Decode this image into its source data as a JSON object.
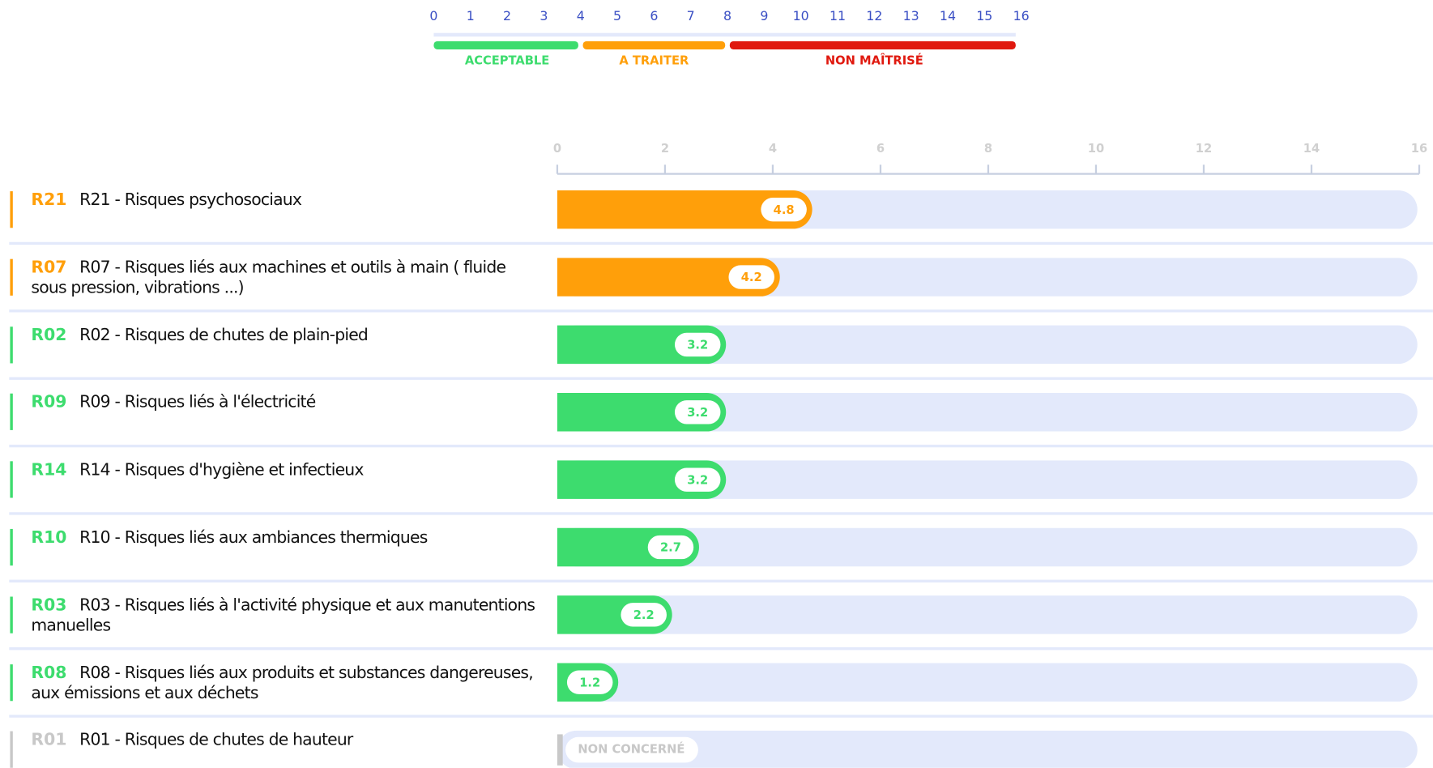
{
  "chart_data": {
    "type": "bar",
    "scale": {
      "ticks": [
        0,
        1,
        2,
        3,
        4,
        5,
        6,
        7,
        8,
        9,
        10,
        11,
        12,
        13,
        14,
        15,
        16
      ],
      "bands": [
        {
          "label": "ACCEPTABLE",
          "from": 0,
          "to": 4,
          "color": "#3ddc6e"
        },
        {
          "label": "A TRAITER",
          "from": 4,
          "to": 8,
          "color": "#ff9f0a"
        },
        {
          "label": "NON MAÎTRISÉ",
          "from": 8,
          "to": 16,
          "color": "#e0190f"
        }
      ]
    },
    "xlim": [
      0,
      16
    ],
    "xticks": [
      0,
      2,
      4,
      6,
      8,
      10,
      12,
      14,
      16
    ],
    "codes": [
      "R21",
      "R07",
      "R02",
      "R09",
      "R14",
      "R10",
      "R03",
      "R08",
      "R01"
    ],
    "categories": [
      "R21 - Risques psychosociaux",
      "R07 - Risques liés aux machines et outils à main ( fluide sous pression, vibrations ...)",
      "R02 - Risques de chutes de plain-pied",
      "R09 - Risques liés à l'électricité",
      "R14 - Risques d'hygiène et infectieux",
      "R10 - Risques liés aux ambiances thermiques",
      "R03 - Risques liés à l'activité physique et aux manutentions manuelles",
      "R08 - Risques liés aux produits et substances dangereuses, aux émissions et aux déchets",
      "R01 - Risques de chutes de hauteur"
    ],
    "values": [
      4.8,
      4.2,
      3.2,
      3.2,
      3.2,
      2.7,
      2.2,
      1.2,
      null
    ],
    "colors": [
      "#ff9f0a",
      "#ff9f0a",
      "#3ddc6e",
      "#3ddc6e",
      "#3ddc6e",
      "#3ddc6e",
      "#3ddc6e",
      "#3ddc6e",
      "#c8c8c8"
    ],
    "na_label": "NON CONCERNÉ"
  }
}
